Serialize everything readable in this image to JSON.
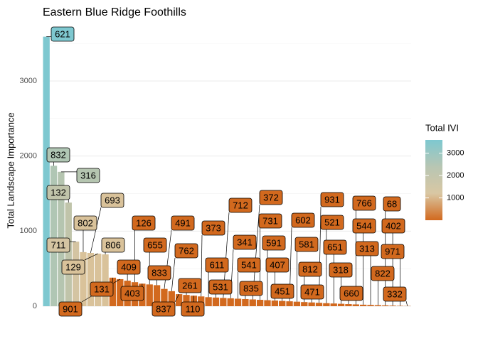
{
  "chart_data": {
    "type": "bar",
    "title": "Eastern Blue Ridge Foothills",
    "y_label": "Total Landscape Importance",
    "categories": [
      "621",
      "832",
      "316",
      "132",
      "711",
      "802",
      "693",
      "129",
      "806",
      "131",
      "901",
      "409",
      "126",
      "403",
      "655",
      "833",
      "491",
      "762",
      "837",
      "261",
      "110",
      "373",
      "611",
      "531",
      "712",
      "341",
      "541",
      "835",
      "372",
      "731",
      "591",
      "407",
      "451",
      "602",
      "581",
      "812",
      "471",
      "931",
      "521",
      "651",
      "318",
      "660",
      "766",
      "544",
      "313",
      "822",
      "68",
      "402",
      "971",
      "332"
    ],
    "values": [
      3590,
      1870,
      1790,
      1380,
      860,
      720,
      710,
      700,
      690,
      380,
      360,
      340,
      320,
      300,
      290,
      280,
      230,
      200,
      160,
      150,
      140,
      130,
      120,
      115,
      110,
      105,
      100,
      95,
      90,
      85,
      80,
      75,
      70,
      65,
      60,
      55,
      50,
      45,
      40,
      36,
      32,
      28,
      24,
      20,
      17,
      14,
      11,
      8,
      5,
      3
    ],
    "colors": [
      "#7ec8d0",
      "#b0c6b4",
      "#b5c5b0",
      "#c0c4aa",
      "#d4c4a2",
      "#d9c29a",
      "#d9c29a",
      "#d9c29a",
      "#d9c29a",
      "#d2691e",
      "#d2691e",
      "#d2691e",
      "#d2691e",
      "#d2691e",
      "#d2691e",
      "#d2691e",
      "#d2691e",
      "#d2691e",
      "#d2691e",
      "#d2691e",
      "#d2691e",
      "#d2691e",
      "#d2691e",
      "#d2691e",
      "#d2691e",
      "#d2691e",
      "#d2691e",
      "#d2691e",
      "#d2691e",
      "#d2691e",
      "#d2691e",
      "#d2691e",
      "#d2691e",
      "#d2691e",
      "#d2691e",
      "#d2691e",
      "#d2691e",
      "#d2691e",
      "#d2691e",
      "#d2691e",
      "#d2691e",
      "#d2691e",
      "#d2691e",
      "#d2691e",
      "#d2691e",
      "#d2691e",
      "#d2691e",
      "#d2691e",
      "#d2691e",
      "#d2691e"
    ],
    "ylim": [
      0,
      3700
    ],
    "yticks": [
      0,
      1000,
      2000,
      3000
    ],
    "y_minor_ticks": [
      500,
      1500,
      2500,
      3500
    ],
    "grid": true,
    "legend": {
      "title": "Total IVI",
      "ticks": [
        1000,
        2000,
        3000
      ],
      "colors": [
        "#d2691e",
        "#d9c7a3",
        "#b8c6b3",
        "#7ec8d0"
      ]
    }
  }
}
